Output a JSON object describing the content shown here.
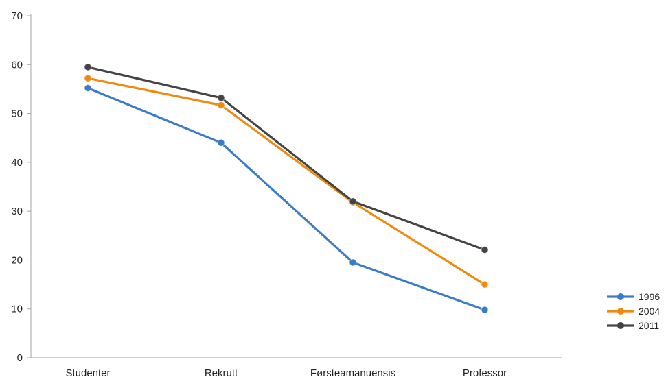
{
  "chart_data": {
    "type": "line",
    "categories": [
      "Studenter",
      "Rekrutt",
      "Førsteamanuensis",
      "Professor"
    ],
    "ylim": [
      0,
      70
    ],
    "yticks": [
      0,
      10,
      20,
      30,
      40,
      50,
      60,
      70
    ],
    "grid": false,
    "legend_position": "right",
    "series": [
      {
        "name": "1996",
        "color": "#3a7dc6",
        "values": [
          55.2,
          44.0,
          19.5,
          9.8
        ]
      },
      {
        "name": "2004",
        "color": "#f0890e",
        "values": [
          57.2,
          51.7,
          31.8,
          15.0
        ]
      },
      {
        "name": "2011",
        "color": "#444444",
        "values": [
          59.5,
          53.2,
          32.0,
          22.1
        ]
      }
    ]
  }
}
